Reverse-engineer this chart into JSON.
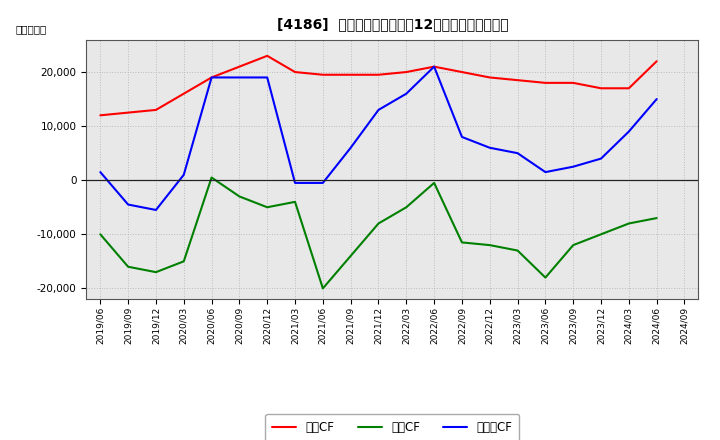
{
  "title": "[4186]  キャッシュフローの12か月移動合計の推移",
  "ylabel": "（百万円）",
  "x_labels": [
    "2019/06",
    "2019/09",
    "2019/12",
    "2020/03",
    "2020/06",
    "2020/09",
    "2020/12",
    "2021/03",
    "2021/06",
    "2021/09",
    "2021/12",
    "2022/03",
    "2022/06",
    "2022/09",
    "2022/12",
    "2023/03",
    "2023/06",
    "2023/09",
    "2023/12",
    "2024/03",
    "2024/06",
    "2024/09"
  ],
  "operating_cf": [
    12000,
    12500,
    13000,
    16000,
    19000,
    21000,
    23000,
    20000,
    19500,
    19500,
    19500,
    20000,
    21000,
    20000,
    19000,
    18500,
    18000,
    18000,
    17000,
    17000,
    22000,
    null
  ],
  "investing_cf": [
    -10000,
    -16000,
    -17000,
    -15000,
    500,
    -3000,
    -5000,
    -4000,
    -20000,
    -14000,
    -8000,
    -5000,
    -500,
    -11500,
    -12000,
    -13000,
    -18000,
    -12000,
    -10000,
    -8000,
    -7000,
    null
  ],
  "free_cf": [
    1500,
    -4500,
    -5500,
    1000,
    19000,
    19000,
    19000,
    -500,
    -500,
    6000,
    13000,
    16000,
    21000,
    8000,
    6000,
    5000,
    1500,
    2500,
    4000,
    9000,
    15000,
    null
  ],
  "operating_color": "#ff0000",
  "investing_color": "#008000",
  "free_color": "#0000ff",
  "ylim": [
    -22000,
    26000
  ],
  "yticks": [
    -20000,
    -10000,
    0,
    10000,
    20000
  ],
  "bg_color": "#ffffff",
  "plot_bg_color": "#e8e8e8",
  "grid_color": "#bbbbbb",
  "legend_labels": [
    "営業CF",
    "投資CF",
    "フリーCF"
  ]
}
